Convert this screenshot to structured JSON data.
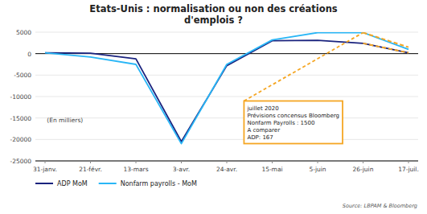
{
  "chart_data": {
    "type": "line",
    "title": "Etats-Unis : normalisation ou non des créations\nd'emplois ?",
    "categories": [
      "31-janv.",
      "21-févr.",
      "13-mars",
      "3-avr.",
      "24-avr.",
      "15-mai",
      "5-juin",
      "26-juin",
      "17-juil."
    ],
    "series": [
      {
        "name": "ADP MoM",
        "color": "#1a237e",
        "values": [
          200,
          100,
          -1200,
          -20500,
          -2800,
          3000,
          3100,
          2400,
          200
        ]
      },
      {
        "name": "Nonfarm payrolls - MoM",
        "color": "#29b6f6",
        "values": [
          200,
          -800,
          -2500,
          -21000,
          -2500,
          3200,
          4900,
          4900,
          1000
        ]
      },
      {
        "color": "#f5a623",
        "line_style": "dashed",
        "values": [
          null,
          null,
          null,
          null,
          null,
          null,
          null,
          4900,
          1500
        ]
      },
      {
        "color": "#f5a623",
        "line_style": "dashed",
        "values": [
          null,
          null,
          null,
          null,
          null,
          null,
          null,
          2400,
          200
        ]
      }
    ],
    "ylim": [
      -25000,
      5000
    ],
    "yticks": [
      -25000,
      -20000,
      -15000,
      -10000,
      -5000,
      0,
      5000
    ],
    "grid": true,
    "legend": "bottom",
    "annotations": [
      {
        "text": "(En milliers)"
      },
      {
        "text": "juillet 2020\nPrévisions concensus Bloomberg\nNonfarm Payrolls : 1500\nA comparer\nADP:  167",
        "x": "26-juin",
        "y": 4900,
        "color": "#f5a623"
      }
    ],
    "source": "Source: LBPAM & Bloomberg"
  }
}
